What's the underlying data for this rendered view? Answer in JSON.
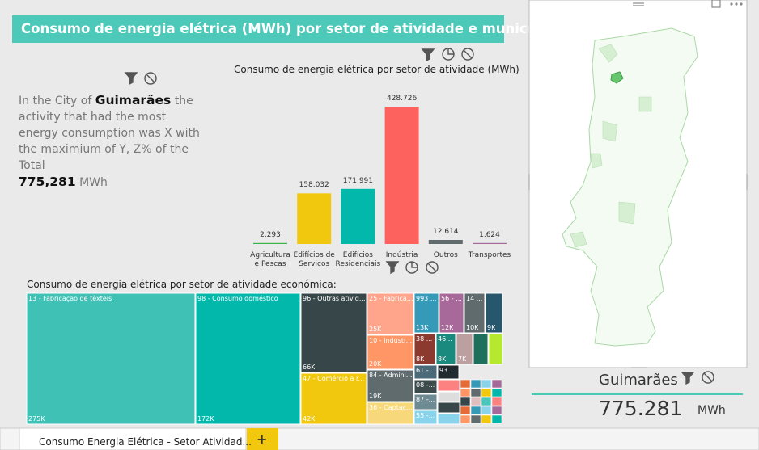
{
  "header": {
    "title": "Consumo de energia elétrica (MWh) por setor de atividade e município"
  },
  "text_card": {
    "prefix": "In the City of",
    "city": "Guimarães",
    "body": "the activity that had the most energy consumption was X with the maximium of Y, Z% of the Total",
    "total": "775,281",
    "unit": "MWh"
  },
  "chart_data": [
    {
      "type": "bar",
      "title": "Consumo de energia elétrica por setor de atividade (MWh)",
      "categories": [
        "Agricultura e Pescas",
        "Edifícios de Serviços",
        "Edifícios Residenciais",
        "Indústria",
        "Outros",
        "Transportes"
      ],
      "values": [
        2293,
        158032,
        171991,
        428726,
        12614,
        1624
      ],
      "value_labels": [
        "2.293",
        "158.032",
        "171.991",
        "428.726",
        "12.614",
        "1.624"
      ],
      "colors": [
        "#3BB44A",
        "#F2C80F",
        "#01B8AA",
        "#FD625E",
        "#5F6B6D",
        "#A66999"
      ]
    },
    {
      "type": "treemap",
      "title": "Consumo de energia elétrica por setor de atividade económica:",
      "categories": [
        "13 - Fabricação de têxteis",
        "98 - Consumo doméstico",
        "96 - Outras ativid...",
        "47 - Comércio a r...",
        "25 - Fabrica...",
        "10 - Indústr...",
        "84 - Admini...",
        "36 - Captaç...",
        "993 ...",
        "56 - ...",
        "14 ...",
        null,
        "38 ...",
        "46...",
        null,
        null,
        null,
        "61 -...",
        "93 ...",
        "08 -...",
        "87 -...",
        "55 -..."
      ],
      "values": [
        275000,
        172000,
        66000,
        42000,
        25000,
        20000,
        19000,
        17000,
        13000,
        12000,
        10000,
        9000,
        8000,
        8000,
        7000,
        6000,
        6000,
        5000,
        5000,
        5000,
        5000,
        4000
      ],
      "value_labels": [
        "275K",
        "172K",
        "66K",
        "42K",
        "25K",
        "20K",
        "19K",
        null,
        "13K",
        "12K",
        "10K",
        "9K",
        "8K",
        "8K",
        "7K",
        null,
        null,
        null,
        null,
        null,
        null,
        null
      ],
      "colors": [
        "#3FC1B5",
        "#01B8AA",
        "#374649",
        "#F2C80F",
        "#FFA58C",
        "#FE9666",
        "#5F6B6D",
        "#F7D87A",
        "#3599B8",
        "#A66999",
        "#5F6B6D",
        "#26576D",
        "#8C3A2F",
        "#1A8A7F",
        "#BCA0A0",
        "#1E6F5C",
        "#B6E82F",
        "#4A6A7A",
        "#1F2A2E",
        "#3E4B4D",
        "#6E8A93",
        "#8AD4EB"
      ]
    }
  ],
  "card": {
    "city": "Guimarães",
    "value": "775.281",
    "unit": "MWh"
  },
  "tabs": {
    "active": "Consumo Energia Elétrica - Setor Atividad...",
    "add": "+"
  }
}
